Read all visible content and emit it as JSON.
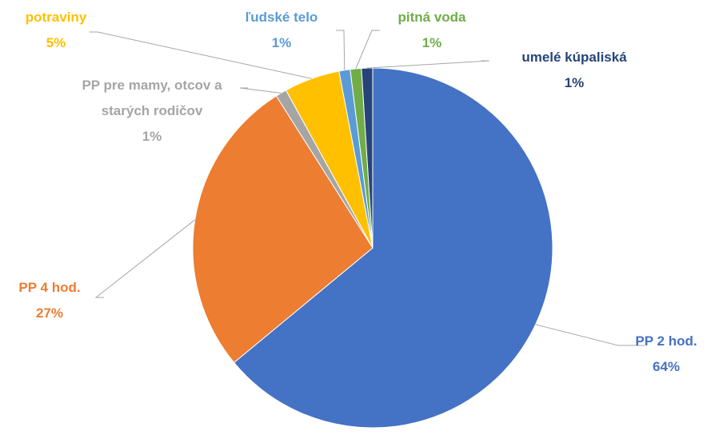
{
  "chart_data": {
    "type": "pie",
    "categories": [
      "PP 2 hod.",
      "PP 4 hod.",
      "PP pre mamy, otcov a starých rodičov",
      "potraviny",
      "ľudské telo",
      "pitná voda",
      "umelé kúpaliská"
    ],
    "values": [
      64,
      27,
      1,
      5,
      1,
      1,
      1
    ],
    "value_labels": [
      "64%",
      "27%",
      "1%",
      "5%",
      "1%",
      "1%",
      "1%"
    ],
    "colors": [
      "#4472c4",
      "#ed7d31",
      "#a5a5a5",
      "#ffc000",
      "#5b9bd5",
      "#70ad47",
      "#264478"
    ]
  }
}
